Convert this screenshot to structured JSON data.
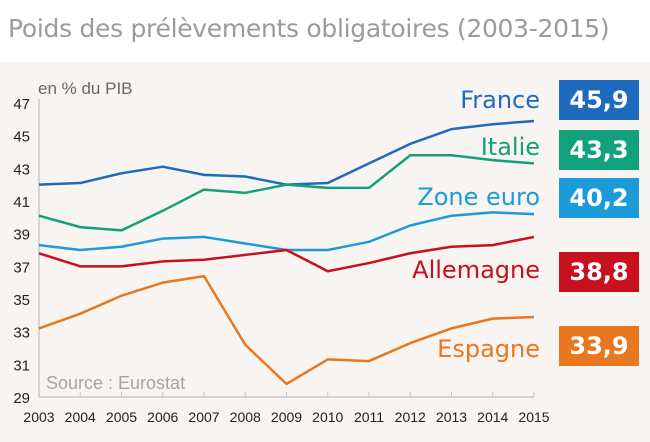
{
  "chart_data": {
    "type": "line",
    "title": "Poids des prélèvements obligatoires (2003-2015)",
    "ylabel": "en % du PIB",
    "source": "Source : Eurostat",
    "x": [
      2003,
      2004,
      2005,
      2006,
      2007,
      2008,
      2009,
      2010,
      2011,
      2012,
      2013,
      2014,
      2015
    ],
    "ylim": [
      29,
      47
    ],
    "yticks": [
      29,
      31,
      33,
      35,
      37,
      39,
      41,
      43,
      45,
      47
    ],
    "grid": false,
    "legend": "direct labels at right",
    "series": [
      {
        "name": "France",
        "color": "#1e6bbd",
        "final_label": "45,9",
        "values": [
          42.0,
          42.1,
          42.7,
          43.1,
          42.6,
          42.5,
          42.0,
          42.1,
          43.3,
          44.5,
          45.4,
          45.7,
          45.9
        ]
      },
      {
        "name": "Italie",
        "color": "#13a07c",
        "final_label": "43,3",
        "values": [
          40.1,
          39.4,
          39.2,
          40.4,
          41.7,
          41.5,
          42.0,
          41.8,
          41.8,
          43.8,
          43.8,
          43.5,
          43.3
        ]
      },
      {
        "name": "Zone euro",
        "color": "#1d9ad8",
        "final_label": "40,2",
        "values": [
          38.3,
          38.0,
          38.2,
          38.7,
          38.8,
          38.4,
          38.0,
          38.0,
          38.5,
          39.5,
          40.1,
          40.3,
          40.2
        ]
      },
      {
        "name": "Allemagne",
        "color": "#c8101e",
        "final_label": "38,8",
        "values": [
          37.8,
          37.0,
          37.0,
          37.3,
          37.4,
          37.7,
          38.0,
          36.7,
          37.2,
          37.8,
          38.2,
          38.3,
          38.8
        ]
      },
      {
        "name": "Espagne",
        "color": "#e8771f",
        "final_label": "33,9",
        "values": [
          33.2,
          34.1,
          35.2,
          36.0,
          36.4,
          32.2,
          29.8,
          31.3,
          31.2,
          32.3,
          33.2,
          33.8,
          33.9
        ]
      }
    ]
  }
}
